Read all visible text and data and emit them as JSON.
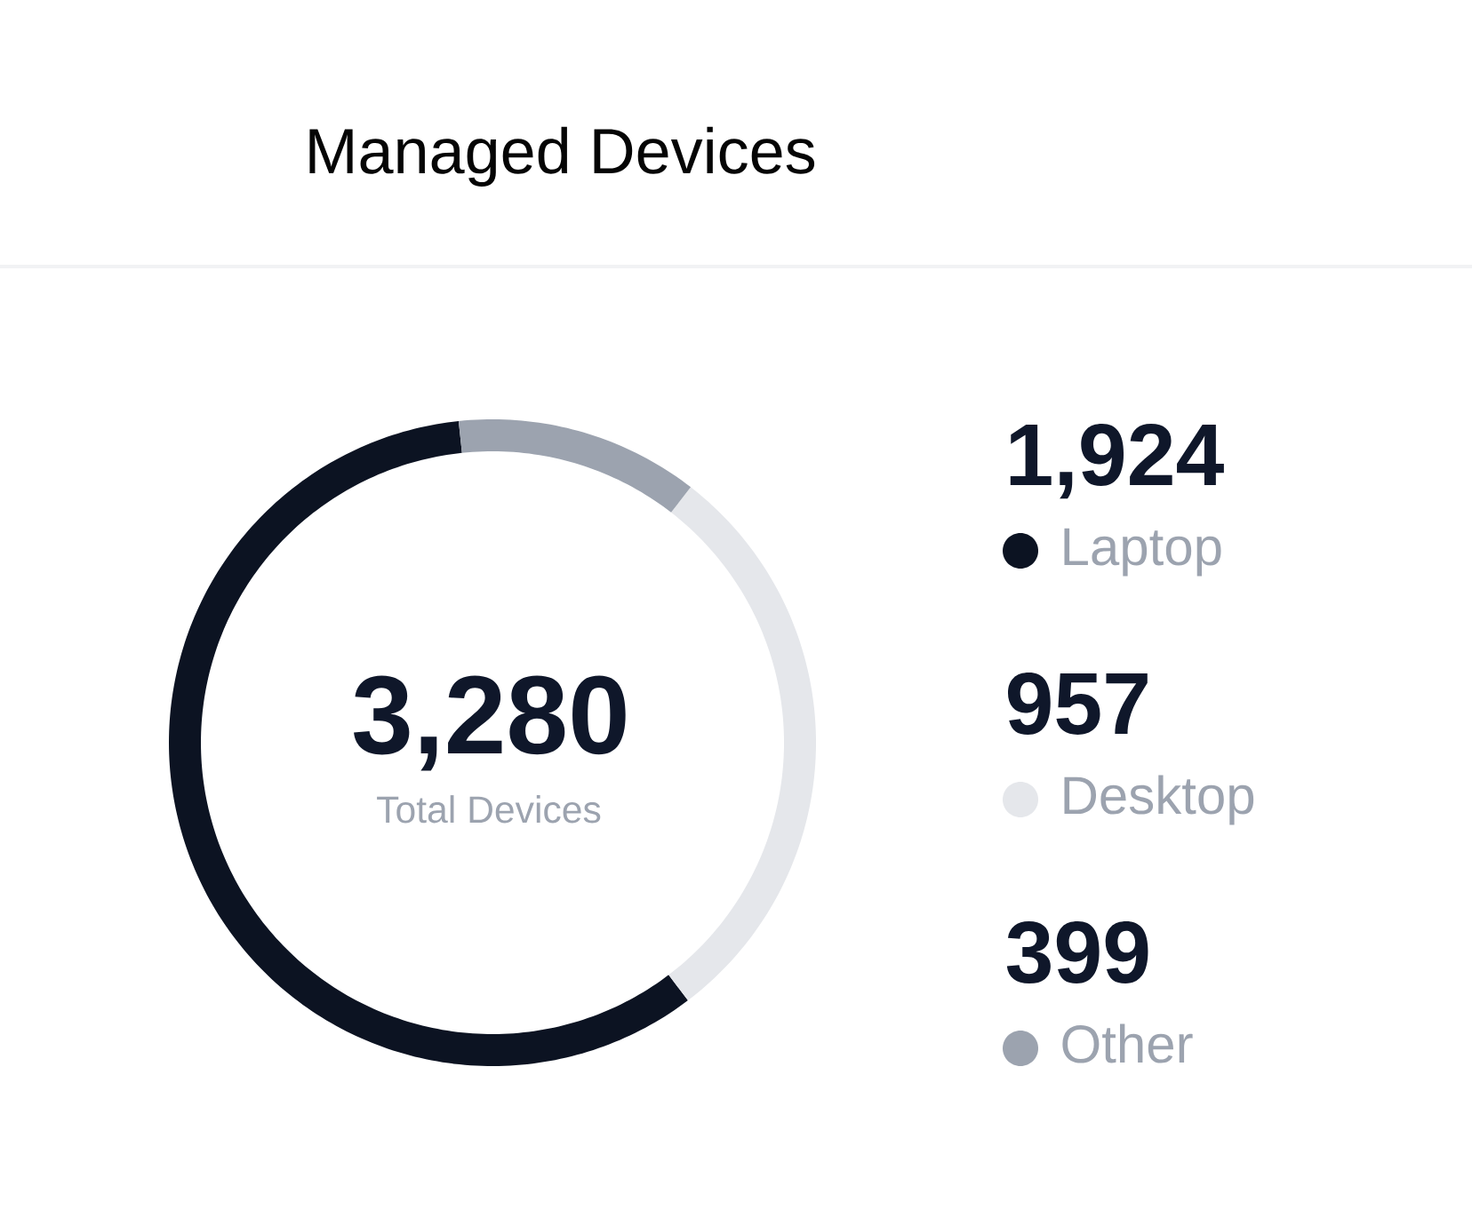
{
  "chart_data": {
    "type": "donut",
    "title": "Managed Devices",
    "categories": [
      "Laptop",
      "Desktop",
      "Other"
    ],
    "values": [
      1924,
      957,
      399
    ],
    "colors": [
      "#0c1322",
      "#e5e7eb",
      "#9ca3af"
    ],
    "value_labels": [
      "1,924",
      "957",
      "399"
    ],
    "annotations": [
      "3,280",
      "Total Devices"
    ],
    "legend": "right"
  }
}
